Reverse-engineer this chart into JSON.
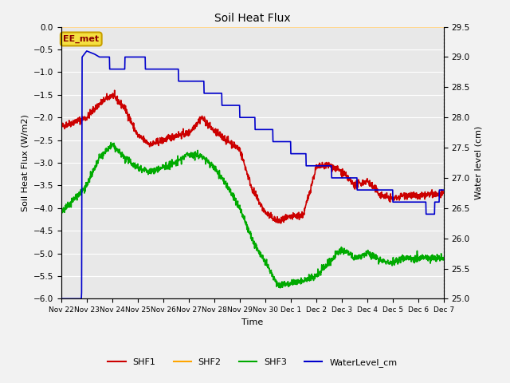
{
  "title": "Soil Heat Flux",
  "ylabel_left": "Soil Heat Flux (W/m2)",
  "ylabel_right": "Water level (cm)",
  "xlabel": "Time",
  "ylim_left": [
    -6.0,
    0.0
  ],
  "ylim_right": [
    25.0,
    29.5
  ],
  "yticks_left": [
    0.0,
    -0.5,
    -1.0,
    -1.5,
    -2.0,
    -2.5,
    -3.0,
    -3.5,
    -4.0,
    -4.5,
    -5.0,
    -5.5,
    -6.0
  ],
  "yticks_right": [
    25.0,
    25.5,
    26.0,
    26.5,
    27.0,
    27.5,
    28.0,
    28.5,
    29.0,
    29.5
  ],
  "background_color": "#e8e8e8",
  "annotation_text": "EE_met",
  "annotation_box_facecolor": "#f5e040",
  "annotation_box_edgecolor": "#c8a000",
  "annotation_text_color": "#8b0000",
  "shf2_color": "#ffa500",
  "shf1_color": "#cc0000",
  "shf3_color": "#00aa00",
  "water_color": "#0000cc",
  "grid_color": "#ffffff",
  "xtick_labels": [
    "Nov 22",
    "Nov 23",
    "Nov 24",
    "Nov 25",
    "Nov 26",
    "Nov 27",
    "Nov 28",
    "Nov 29",
    "Nov 30",
    "Dec 1",
    "Dec 2",
    "Dec 3",
    "Dec 4",
    "Dec 5",
    "Dec 6",
    "Dec 7"
  ],
  "n_days": 15,
  "figsize": [
    6.4,
    4.8
  ],
  "dpi": 100
}
